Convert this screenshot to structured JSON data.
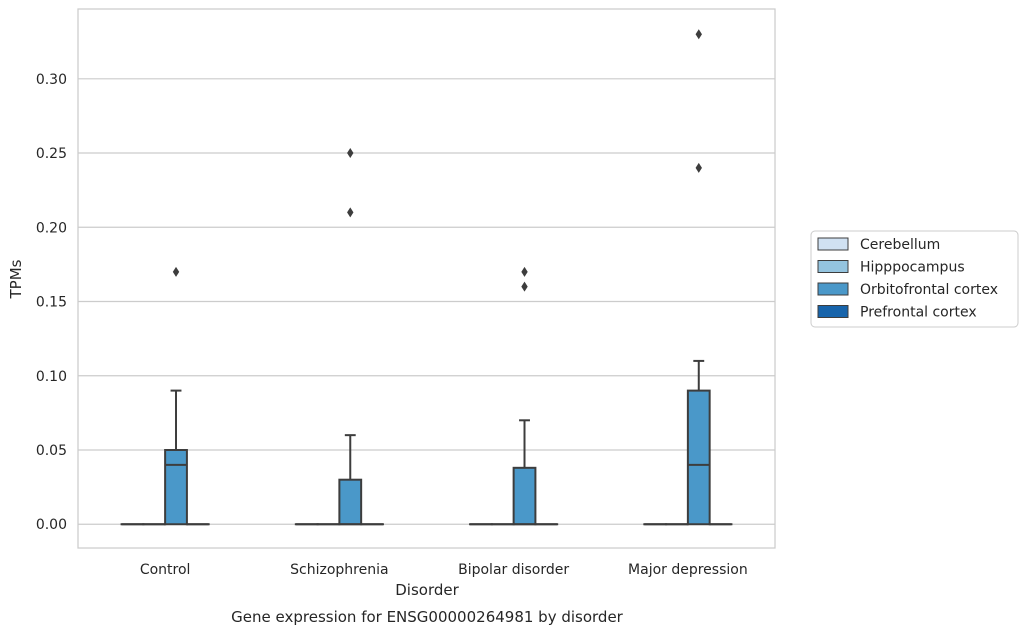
{
  "chart_data": {
    "type": "box",
    "caption": "Gene expression for ENSG00000264981 by disorder",
    "xlabel": "Disorder",
    "ylabel": "TPMs",
    "ylim": [
      -0.016,
      0.347
    ],
    "yticks": [
      0.0,
      0.05,
      0.1,
      0.15,
      0.2,
      0.25,
      0.3
    ],
    "ytick_labels": [
      "0.00",
      "0.05",
      "0.10",
      "0.15",
      "0.20",
      "0.25",
      "0.30"
    ],
    "categories": [
      "Control",
      "Schizophrenia",
      "Bipolar disorder",
      "Major depression"
    ],
    "grid": "horizontal",
    "legend_position": "right",
    "series": [
      {
        "name": "Cerebellum",
        "color": "#d0e1f2",
        "boxes": [
          {
            "q1": 0,
            "median": 0,
            "q3": 0,
            "whisker_low": 0,
            "whisker_high": 0,
            "outliers": []
          },
          {
            "q1": 0,
            "median": 0,
            "q3": 0,
            "whisker_low": 0,
            "whisker_high": 0,
            "outliers": []
          },
          {
            "q1": 0,
            "median": 0,
            "q3": 0,
            "whisker_low": 0,
            "whisker_high": 0,
            "outliers": []
          },
          {
            "q1": 0,
            "median": 0,
            "q3": 0,
            "whisker_low": 0,
            "whisker_high": 0,
            "outliers": []
          }
        ]
      },
      {
        "name": "Hipppocampus",
        "color": "#94c4df",
        "boxes": [
          {
            "q1": 0,
            "median": 0,
            "q3": 0,
            "whisker_low": 0,
            "whisker_high": 0,
            "outliers": []
          },
          {
            "q1": 0,
            "median": 0,
            "q3": 0,
            "whisker_low": 0,
            "whisker_high": 0,
            "outliers": []
          },
          {
            "q1": 0,
            "median": 0,
            "q3": 0,
            "whisker_low": 0,
            "whisker_high": 0,
            "outliers": []
          },
          {
            "q1": 0,
            "median": 0,
            "q3": 0,
            "whisker_low": 0,
            "whisker_high": 0,
            "outliers": []
          }
        ]
      },
      {
        "name": "Orbitofrontal cortex",
        "color": "#4a98c9",
        "boxes": [
          {
            "q1": 0,
            "median": 0.04,
            "q3": 0.05,
            "whisker_low": 0,
            "whisker_high": 0.09,
            "outliers": [
              0.17
            ]
          },
          {
            "q1": 0,
            "median": 0,
            "q3": 0.03,
            "whisker_low": 0,
            "whisker_high": 0.06,
            "outliers": [
              0.21,
              0.25
            ]
          },
          {
            "q1": 0,
            "median": 0,
            "q3": 0.038,
            "whisker_low": 0,
            "whisker_high": 0.07,
            "outliers": [
              0.16,
              0.17
            ]
          },
          {
            "q1": 0,
            "median": 0.04,
            "q3": 0.09,
            "whisker_low": 0,
            "whisker_high": 0.11,
            "outliers": [
              0.24,
              0.33
            ]
          }
        ]
      },
      {
        "name": "Prefrontal cortex",
        "color": "#1764ab",
        "boxes": [
          {
            "q1": 0,
            "median": 0,
            "q3": 0,
            "whisker_low": 0,
            "whisker_high": 0,
            "outliers": []
          },
          {
            "q1": 0,
            "median": 0,
            "q3": 0,
            "whisker_low": 0,
            "whisker_high": 0,
            "outliers": []
          },
          {
            "q1": 0,
            "median": 0,
            "q3": 0,
            "whisker_low": 0,
            "whisker_high": 0,
            "outliers": []
          },
          {
            "q1": 0,
            "median": 0,
            "q3": 0,
            "whisker_low": 0,
            "whisker_high": 0,
            "outliers": []
          }
        ]
      }
    ]
  }
}
